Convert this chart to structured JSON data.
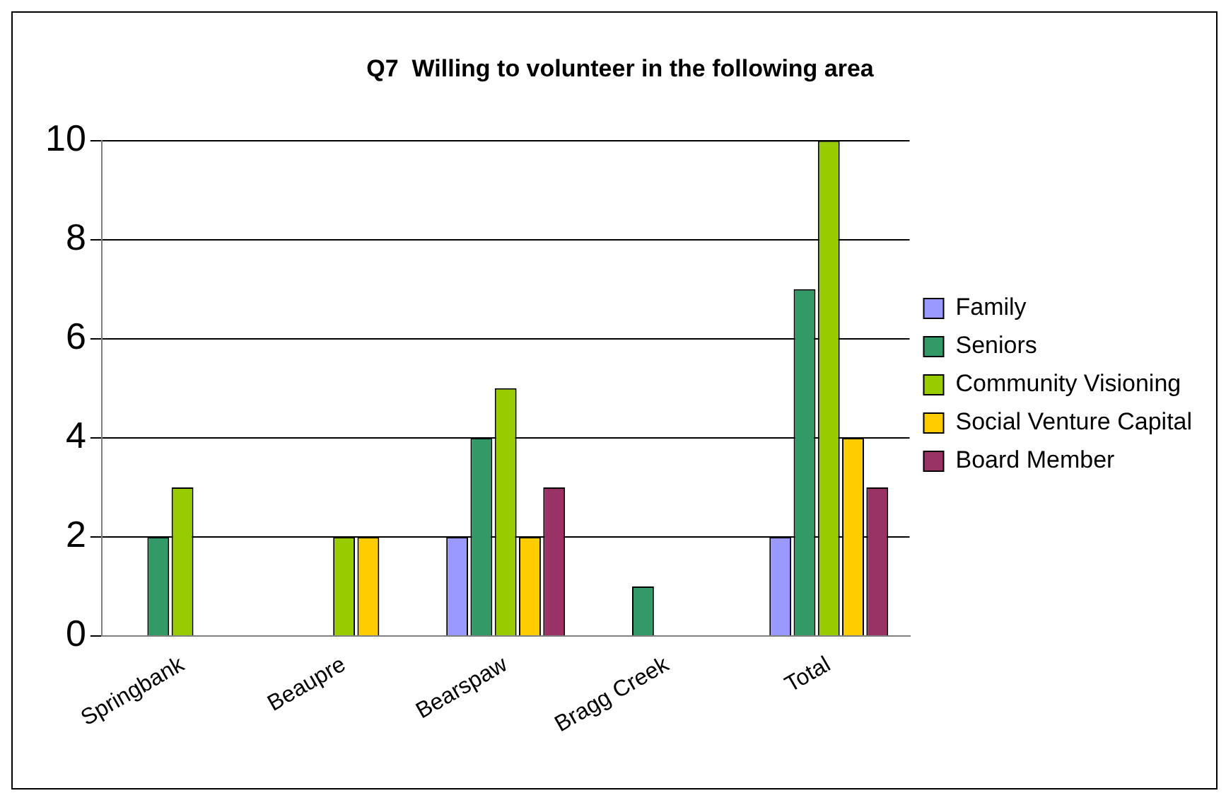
{
  "chart_data": {
    "type": "bar",
    "title": "Q7  Willing to volunteer in the following area",
    "categories": [
      "Springbank",
      "Beaupre",
      "Bearspaw",
      "Bragg Creek",
      "Total"
    ],
    "series": [
      {
        "name": "Family",
        "color": "#9999ff",
        "values": [
          0,
          0,
          2,
          0,
          2
        ]
      },
      {
        "name": "Seniors",
        "color": "#339966",
        "values": [
          2,
          0,
          4,
          1,
          7
        ]
      },
      {
        "name": "Community Visioning",
        "color": "#99cc00",
        "values": [
          3,
          2,
          5,
          0,
          10
        ]
      },
      {
        "name": "Social Venture Capital",
        "color": "#ffcc00",
        "values": [
          0,
          2,
          2,
          0,
          4
        ]
      },
      {
        "name": "Board Member",
        "color": "#993366",
        "values": [
          0,
          0,
          3,
          0,
          3
        ]
      }
    ],
    "ylim": [
      0,
      10
    ],
    "yticks": [
      0,
      2,
      4,
      6,
      8,
      10
    ],
    "grid": "y",
    "legend": "right"
  }
}
